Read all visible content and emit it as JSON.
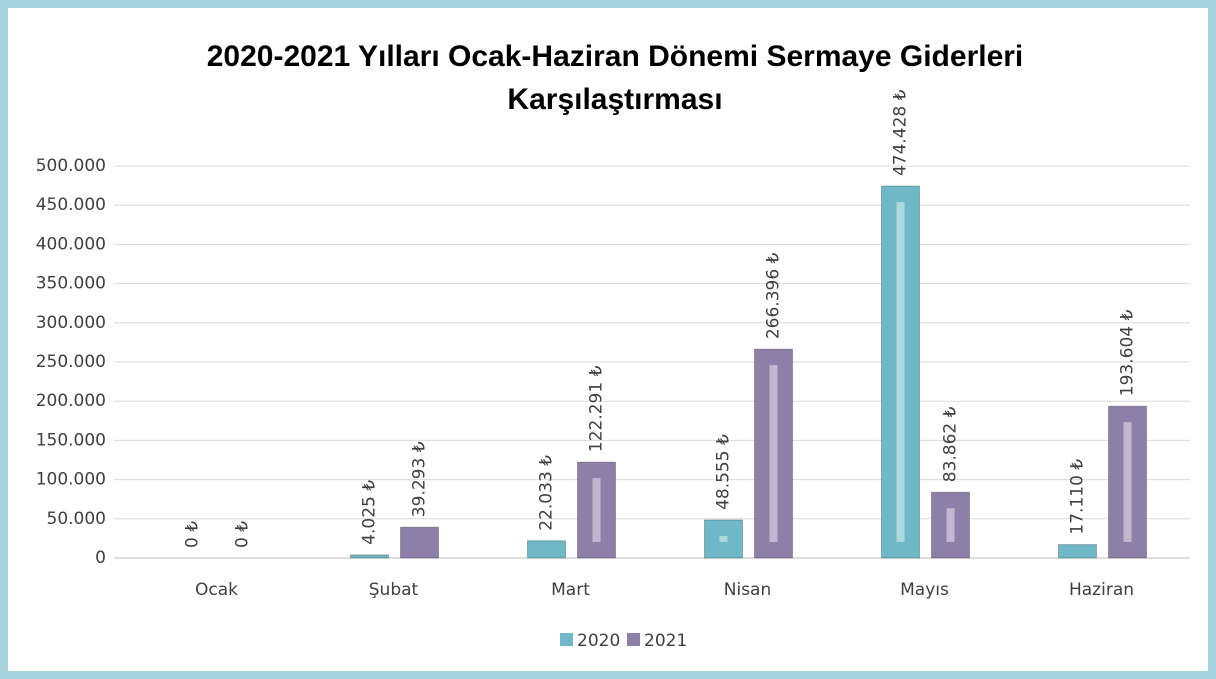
{
  "chart_data": {
    "type": "bar",
    "title": [
      "2020-2021 Yılları Ocak-Haziran Dönemi Sermaye Giderleri",
      "Karşılaştırması"
    ],
    "categories": [
      "Ocak",
      "Şubat",
      "Mart",
      "Nisan",
      "Mayıs",
      "Haziran"
    ],
    "series": [
      {
        "name": "2020",
        "color": "#6fb8c8",
        "values": [
          0,
          4025,
          22033,
          48555,
          474428,
          17110
        ],
        "value_labels": [
          "0 ₺",
          "4.025 ₺",
          "22.033 ₺",
          "48.555 ₺",
          "474.428 ₺",
          "17.110 ₺"
        ]
      },
      {
        "name": "2021",
        "color": "#8e7fa8",
        "values": [
          0,
          39293,
          122291,
          266396,
          83862,
          193604
        ],
        "value_labels": [
          "0 ₺",
          "39.293 ₺",
          "122.291 ₺",
          "266.396 ₺",
          "83.862 ₺",
          "193.604 ₺"
        ]
      }
    ],
    "ylim": [
      0,
      500000
    ],
    "yticks": [
      0,
      {
        "value": 50000,
        "label": "50.000"
      },
      {
        "value": 100000,
        "label": "100.000"
      },
      {
        "value": 150000,
        "label": "150.000"
      },
      {
        "value": 200000,
        "label": "200.000"
      },
      {
        "value": 250000,
        "label": "250.000"
      },
      {
        "value": 300000,
        "label": "300.000"
      },
      {
        "value": 350000,
        "label": "350.000"
      },
      {
        "value": 400000,
        "label": "400.000"
      },
      {
        "value": 450000,
        "label": "450.000"
      },
      {
        "value": 500000,
        "label": "500.000"
      }
    ],
    "grid": true,
    "legend": "bottom"
  }
}
